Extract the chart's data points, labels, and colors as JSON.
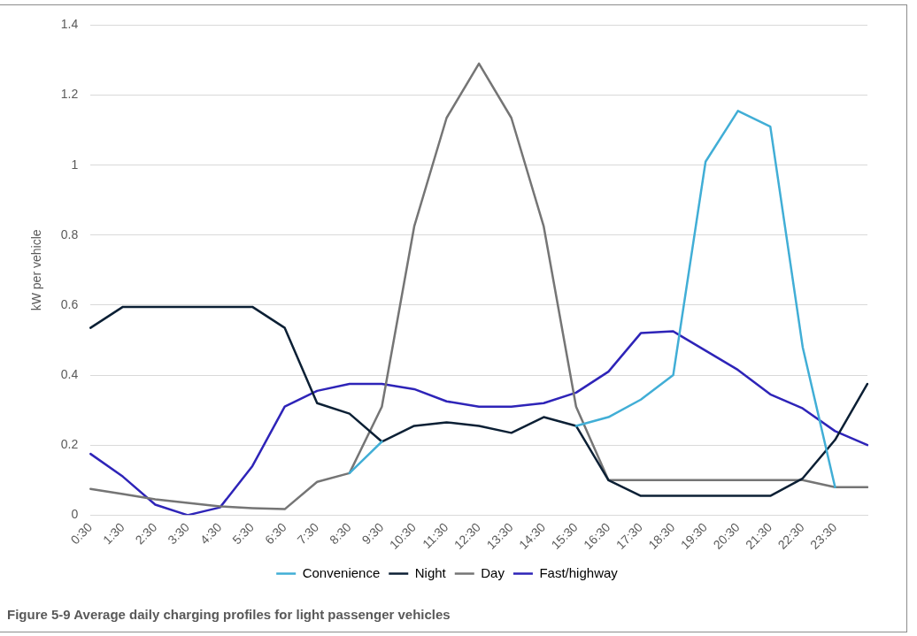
{
  "chart_data": {
    "type": "line",
    "ylabel": "kW per vehicle",
    "categories": [
      "0:30",
      "1:30",
      "2:30",
      "3:30",
      "4:30",
      "5:30",
      "6:30",
      "7:30",
      "8:30",
      "9:30",
      "10:30",
      "11:30",
      "12:30",
      "13:30",
      "14:30",
      "15:30",
      "16:30",
      "17:30",
      "18:30",
      "19:30",
      "20:30",
      "21:30",
      "22:30",
      "23:30",
      null
    ],
    "series": [
      {
        "name": "Convenience",
        "color": "#41aed6",
        "values": [
          null,
          null,
          null,
          null,
          null,
          null,
          null,
          null,
          0.12,
          0.21,
          null,
          null,
          null,
          null,
          null,
          0.255,
          0.28,
          0.33,
          0.4,
          1.01,
          1.155,
          1.11,
          0.48,
          0.08,
          null
        ]
      },
      {
        "name": "Night",
        "color": "#0c2035",
        "values": [
          0.535,
          0.595,
          0.595,
          0.595,
          0.595,
          0.595,
          0.535,
          0.32,
          0.29,
          0.21,
          0.255,
          0.265,
          0.255,
          0.235,
          0.28,
          0.255,
          0.1,
          0.055,
          0.055,
          0.055,
          0.055,
          0.055,
          0.105,
          0.215,
          0.375
        ]
      },
      {
        "name": "Day",
        "color": "#757575",
        "values": [
          0.075,
          0.06,
          0.045,
          0.035,
          0.025,
          0.02,
          0.017,
          0.095,
          0.12,
          0.31,
          0.825,
          1.135,
          1.29,
          1.135,
          0.825,
          0.31,
          0.1,
          0.1,
          0.1,
          0.1,
          0.1,
          0.1,
          0.1,
          0.08,
          0.08
        ]
      },
      {
        "name": "Fast/highway",
        "color": "#2e24b8",
        "values": [
          0.175,
          0.11,
          0.03,
          0,
          0.022,
          0.14,
          0.31,
          0.355,
          0.375,
          0.375,
          0.36,
          0.325,
          0.31,
          0.31,
          0.32,
          0.35,
          0.41,
          0.52,
          0.525,
          0.47,
          0.415,
          0.345,
          0.305,
          0.24,
          0.2
        ]
      }
    ],
    "ylim": [
      0,
      1.4
    ],
    "yticks": [
      0,
      0.2,
      0.4,
      0.6,
      0.8,
      1,
      1.2,
      1.4
    ],
    "grid": "y",
    "legend": "bottom",
    "marker": "none",
    "line_style": "solid",
    "annotations": [
      "Figure 5-9 Average daily charging profiles for light passenger vehicles"
    ]
  }
}
